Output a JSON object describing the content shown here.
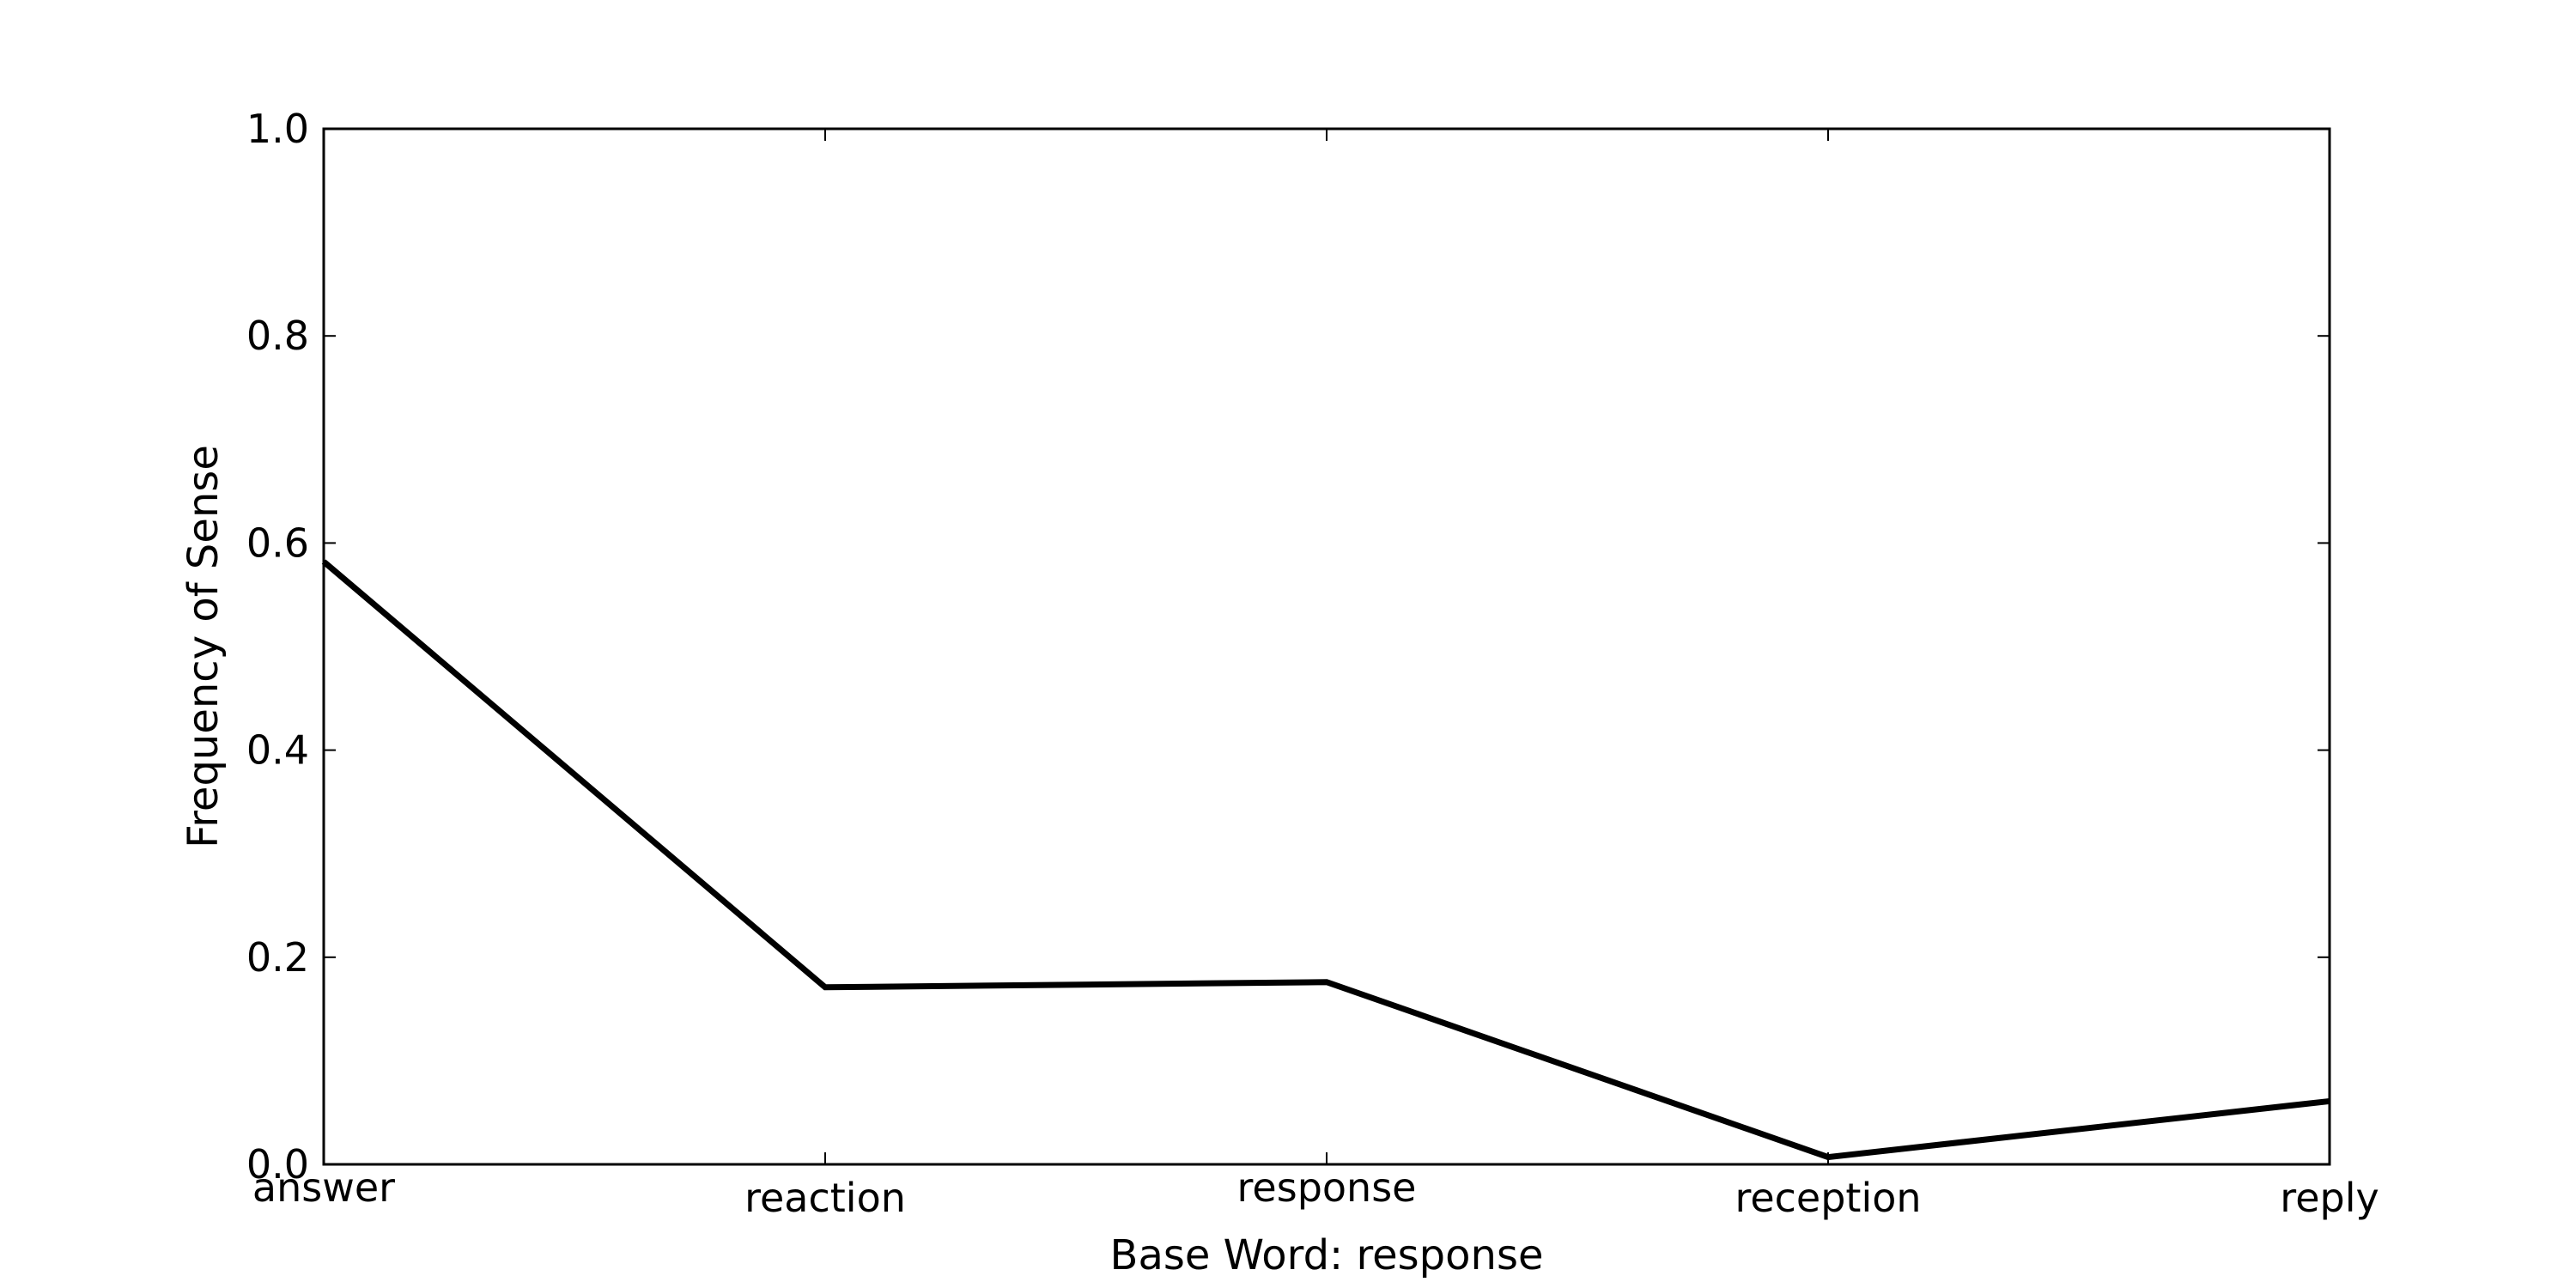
{
  "chart_data": {
    "type": "line",
    "title": "",
    "xlabel": "Base Word: response",
    "ylabel": "Frequency of Sense",
    "categories": [
      "answer",
      "reaction",
      "response",
      "reception",
      "reply"
    ],
    "series": [
      {
        "values": [
          0.582,
          0.171,
          0.176,
          0.007,
          0.061
        ],
        "color": "#000000"
      }
    ],
    "ylim": [
      0,
      1
    ],
    "yticks": [
      "0.0",
      "0.2",
      "0.4",
      "0.6",
      "0.8",
      "1.0"
    ],
    "grid": false,
    "legend": "none"
  }
}
